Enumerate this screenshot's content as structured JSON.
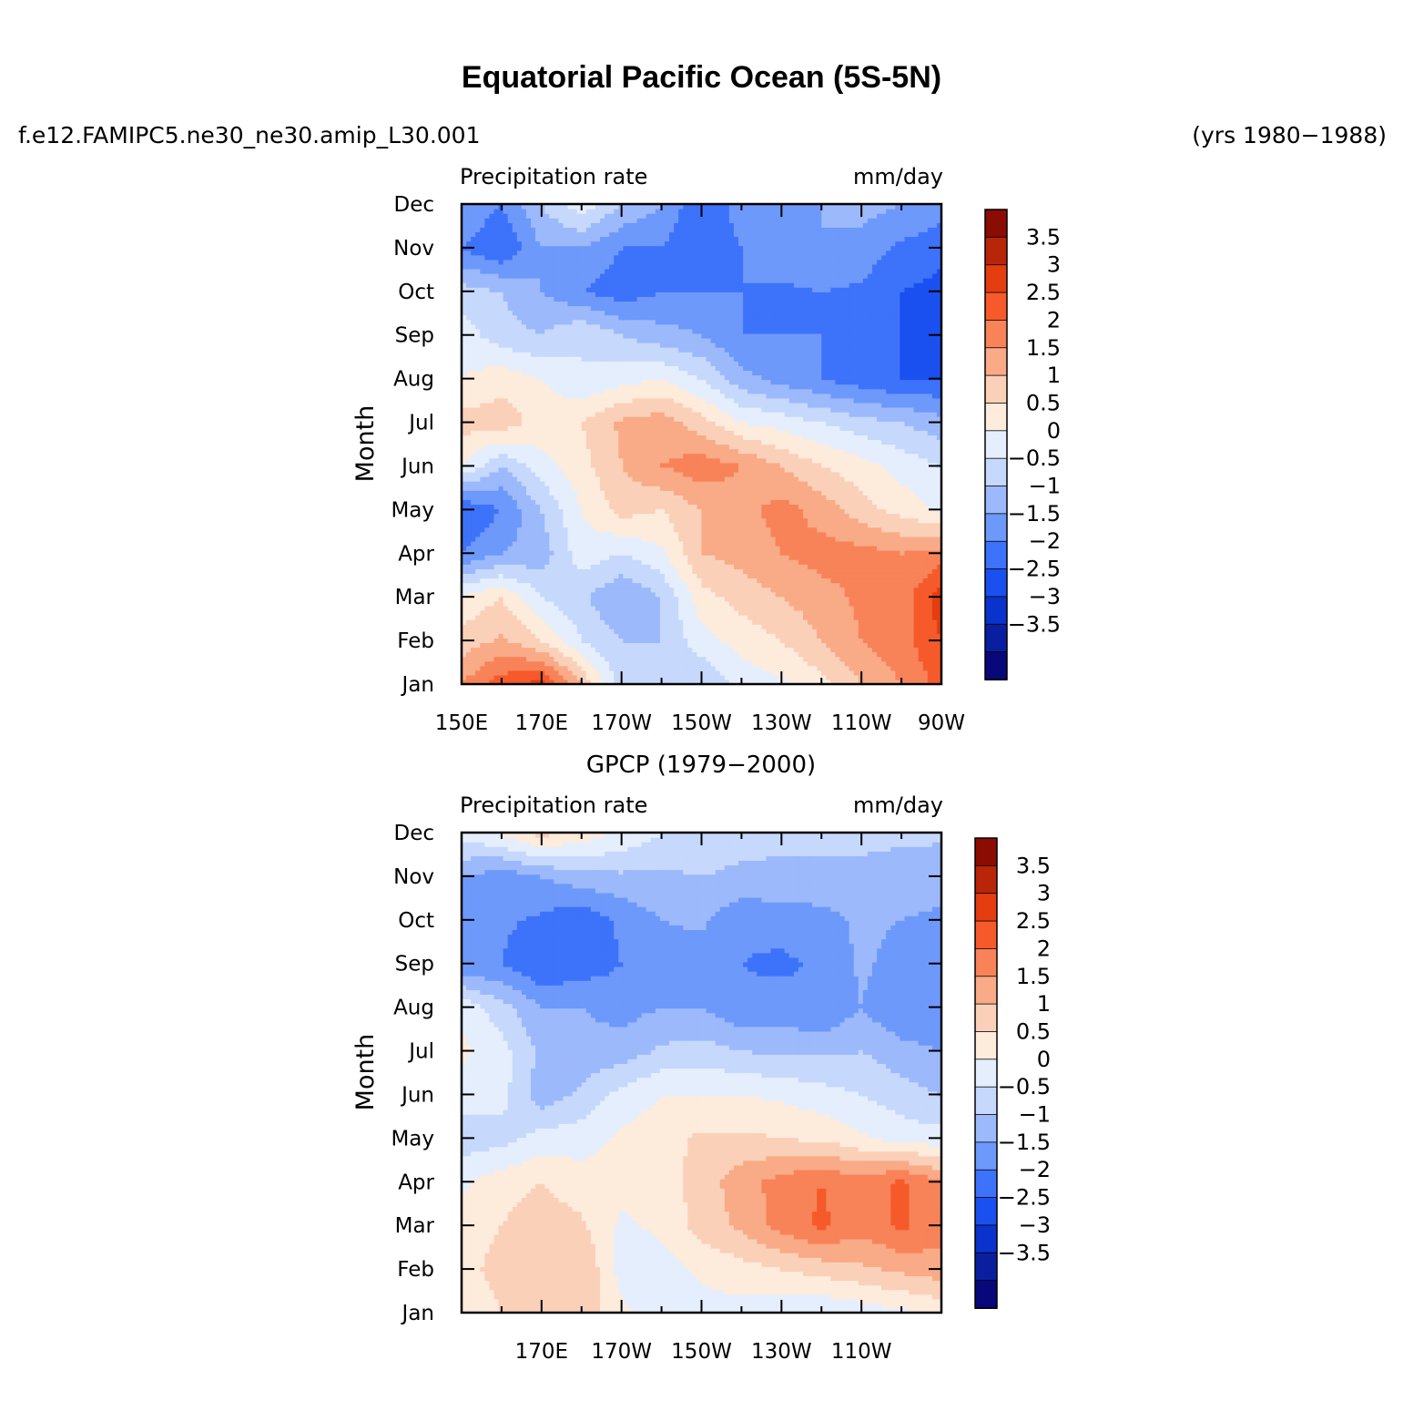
{
  "figure": {
    "title": "Equatorial Pacific Ocean (5S-5N)",
    "left_string": "f.e12.FAMIPC5.ne30_ne30.amip_L30.001",
    "right_string": "(yrs 1980−1988)"
  },
  "colors": {
    "levels_palette": [
      "#08087a",
      "#0a1fa0",
      "#0a32cc",
      "#1a50f0",
      "#3d72fa",
      "#6d99fb",
      "#9cb9fb",
      "#c6d8fb",
      "#e4eefd",
      "#fdebdc",
      "#fbd0b8",
      "#f9aa86",
      "#f88358",
      "#f65a2a",
      "#e43d10",
      "#b82508",
      "#8a0c03"
    ]
  },
  "chart_data": [
    {
      "type": "heatmap",
      "name": "model",
      "title": "",
      "left_label": "Precipitation  rate",
      "right_label": "mm/day",
      "xlabel": "",
      "ylabel": "Month",
      "x_tick_labels": [
        "150E",
        "170E",
        "170W",
        "150W",
        "130W",
        "110W",
        "90W"
      ],
      "x_range": [
        150,
        270
      ],
      "y_tick_labels": [
        "Jan",
        "Feb",
        "Mar",
        "Apr",
        "May",
        "Jun",
        "Jul",
        "Aug",
        "Sep",
        "Oct",
        "Nov",
        "Dec"
      ],
      "colorbar_levels": [
        -3.5,
        -3,
        -2.5,
        -2,
        -1.5,
        -1,
        -0.5,
        0,
        0.5,
        1,
        1.5,
        2,
        2.5,
        3,
        3.5
      ],
      "colorbar_labels": [
        "3.5",
        "3",
        "2.5",
        "2",
        "1.5",
        "1",
        "0.5",
        "0",
        "−0.5",
        "−1",
        "−1.5",
        "−2",
        "−2.5",
        "−3",
        "−3.5"
      ],
      "lon": [
        150,
        160,
        170,
        180,
        190,
        200,
        210,
        220,
        230,
        240,
        250,
        260,
        270
      ],
      "values": [
        [
          2.0,
          2.8,
          3.2,
          1.5,
          -0.3,
          -0.5,
          -0.5,
          0.2,
          0.4,
          0.8,
          1.5,
          2.0,
          2.7
        ],
        [
          1.2,
          1.6,
          1.0,
          0.0,
          -0.5,
          -0.5,
          0.3,
          0.7,
          1.0,
          1.5,
          2.0,
          2.3,
          3.0
        ],
        [
          0.6,
          1.0,
          0.0,
          -0.4,
          -1.0,
          -0.5,
          0.8,
          1.2,
          1.5,
          1.8,
          2.1,
          2.2,
          3.3
        ],
        [
          -1.5,
          -1.0,
          -0.8,
          0.3,
          0.0,
          0.4,
          1.5,
          1.7,
          2.0,
          2.2,
          2.2,
          2.0,
          2.2
        ],
        [
          -2.0,
          -1.5,
          -0.5,
          0.5,
          1.2,
          1.0,
          1.5,
          1.8,
          2.2,
          1.8,
          1.2,
          0.8,
          0.4
        ],
        [
          0.5,
          -0.5,
          0.3,
          0.8,
          1.5,
          2.0,
          2.3,
          2.0,
          1.5,
          1.0,
          0.7,
          0.3,
          0.0
        ],
        [
          1.2,
          1.3,
          0.8,
          1.0,
          1.6,
          1.8,
          1.2,
          0.5,
          0.3,
          0.0,
          -0.3,
          -0.5,
          -0.8
        ],
        [
          0.5,
          0.8,
          0.5,
          0.0,
          0.3,
          0.5,
          0.0,
          -0.8,
          -1.2,
          -1.5,
          -1.8,
          -2.0,
          -2.0
        ],
        [
          0.3,
          -0.3,
          -0.5,
          0.0,
          -0.5,
          -0.8,
          -1.0,
          -1.5,
          -1.5,
          -1.5,
          -1.5,
          -2.0,
          -2.2
        ],
        [
          -0.3,
          -0.5,
          -1.0,
          -1.5,
          -1.8,
          -1.5,
          -1.5,
          -1.5,
          -1.6,
          -1.5,
          -1.6,
          -2.0,
          -2.2
        ],
        [
          -1.5,
          -2.0,
          -1.0,
          -1.0,
          -1.5,
          -1.5,
          -2.0,
          -1.5,
          -1.2,
          -1.0,
          -1.2,
          -1.6,
          -1.8
        ],
        [
          -1.0,
          -1.5,
          -0.5,
          0.3,
          -0.5,
          -1.0,
          -2.0,
          -1.2,
          -1.0,
          -1.0,
          -0.8,
          -1.0,
          -1.3
        ]
      ]
    },
    {
      "type": "heatmap",
      "name": "obs",
      "title": "GPCP (1979−2000)",
      "left_label": "Precipitation  rate",
      "right_label": "mm/day",
      "xlabel": "",
      "ylabel": "Month",
      "x_tick_labels": [
        "",
        "170E",
        "170W",
        "150W",
        "130W",
        "110W",
        ""
      ],
      "x_range": [
        150,
        270
      ],
      "y_tick_labels": [
        "Jan",
        "Feb",
        "Mar",
        "Apr",
        "May",
        "Jun",
        "Jul",
        "Aug",
        "Sep",
        "Oct",
        "Nov",
        "Dec"
      ],
      "colorbar_levels": [
        -3.5,
        -3,
        -2.5,
        -2,
        -1.5,
        -1,
        -0.5,
        0,
        0.5,
        1,
        1.5,
        2,
        2.5,
        3,
        3.5
      ],
      "colorbar_labels": [
        "3.5",
        "3",
        "2.5",
        "2",
        "1.5",
        "1",
        "0.5",
        "0",
        "−0.5",
        "−1",
        "−1.5",
        "−2",
        "−2.5",
        "−3",
        "−3.5"
      ],
      "lon": [
        150,
        160,
        170,
        180,
        190,
        200,
        210,
        220,
        230,
        240,
        250,
        260,
        270
      ],
      "values": [
        [
          0.6,
          1.0,
          1.2,
          1.3,
          0.6,
          0.3,
          0.3,
          0.3,
          0.2,
          0.0,
          0.2,
          0.4,
          0.6
        ],
        [
          0.8,
          1.2,
          1.5,
          1.5,
          0.3,
          0.3,
          0.6,
          0.8,
          1.0,
          1.2,
          1.4,
          1.6,
          1.8
        ],
        [
          0.7,
          1.0,
          1.3,
          1.1,
          0.4,
          0.6,
          1.2,
          1.6,
          2.2,
          2.6,
          2.2,
          2.6,
          2.2
        ],
        [
          0.4,
          0.8,
          1.0,
          0.7,
          0.7,
          0.8,
          1.2,
          1.8,
          2.2,
          2.5,
          2.2,
          2.6,
          2.0
        ],
        [
          -0.3,
          -0.2,
          0.2,
          0.3,
          0.6,
          0.8,
          1.1,
          1.1,
          1.0,
          0.9,
          0.6,
          0.3,
          0.2
        ],
        [
          0.3,
          0.2,
          -0.8,
          -0.4,
          0.2,
          0.5,
          0.5,
          0.5,
          0.4,
          0.2,
          0.0,
          -0.3,
          -0.5
        ],
        [
          0.6,
          0.2,
          -0.6,
          -0.8,
          -0.8,
          -0.4,
          -0.3,
          -0.5,
          -0.6,
          -0.6,
          -0.5,
          -0.8,
          -1.0
        ],
        [
          0.4,
          -0.3,
          -1.0,
          -1.0,
          -1.2,
          -1.0,
          -1.0,
          -1.4,
          -1.3,
          -1.5,
          -1.0,
          -1.5,
          -1.5
        ],
        [
          -1.5,
          -1.5,
          -2.0,
          -1.8,
          -1.5,
          -1.2,
          -1.3,
          -1.5,
          -1.6,
          -1.4,
          -0.9,
          -1.2,
          -1.4
        ],
        [
          -1.2,
          -1.4,
          -1.6,
          -1.9,
          -1.4,
          -1.0,
          -0.9,
          -1.4,
          -1.3,
          -1.2,
          -0.9,
          -1.0,
          -1.1
        ],
        [
          -1.0,
          -1.3,
          -1.0,
          -0.7,
          -0.6,
          -0.6,
          -0.5,
          -0.6,
          -0.6,
          -0.6,
          -0.6,
          -0.7,
          -0.8
        ],
        [
          0.2,
          0.6,
          1.2,
          0.8,
          0.4,
          0.0,
          -0.2,
          -0.3,
          -0.4,
          -0.4,
          -0.4,
          -0.4,
          -0.4
        ]
      ]
    }
  ]
}
